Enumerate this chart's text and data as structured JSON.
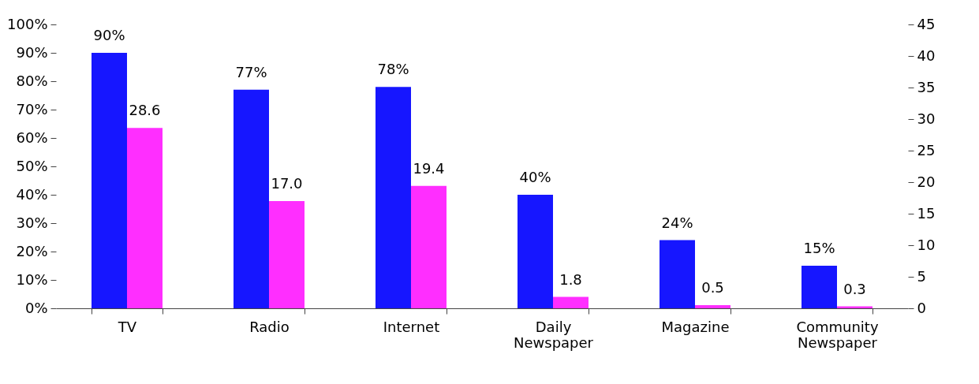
{
  "chart_data": {
    "type": "bar",
    "categories": [
      "TV",
      "Radio",
      "Internet",
      "Daily Newspaper",
      "Magazine",
      "Community Newspaper"
    ],
    "series": [
      {
        "color": "#1616ff",
        "values": [
          90,
          77,
          78,
          40,
          24,
          15
        ],
        "value_labels": [
          "90%",
          "77%",
          "78%",
          "40%",
          "24%",
          "15%"
        ]
      },
      {
        "color": "#ff2eff",
        "axis": "y2",
        "values": [
          28.6,
          17.0,
          19.4,
          1.8,
          0.5,
          0.3
        ],
        "value_labels": [
          "28.6",
          "17.0",
          "19.4",
          "1.8",
          "0.5",
          "0.3"
        ]
      }
    ],
    "ylim": [
      0,
      100
    ],
    "yticks": [
      {
        "value": 0,
        "label": "0%"
      },
      {
        "value": 10,
        "label": "10%"
      },
      {
        "value": 20,
        "label": "20%"
      },
      {
        "value": 30,
        "label": "30%"
      },
      {
        "value": 40,
        "label": "40%"
      },
      {
        "value": 50,
        "label": "50%"
      },
      {
        "value": 60,
        "label": "60%"
      },
      {
        "value": 70,
        "label": "70%"
      },
      {
        "value": 80,
        "label": "80%"
      },
      {
        "value": 90,
        "label": "90%"
      },
      {
        "value": 100,
        "label": "100%"
      }
    ],
    "y2lim": [
      0,
      45
    ],
    "y2ticks": [
      0,
      5,
      10,
      15,
      20,
      25,
      30,
      35,
      40,
      45
    ],
    "grid": false
  }
}
